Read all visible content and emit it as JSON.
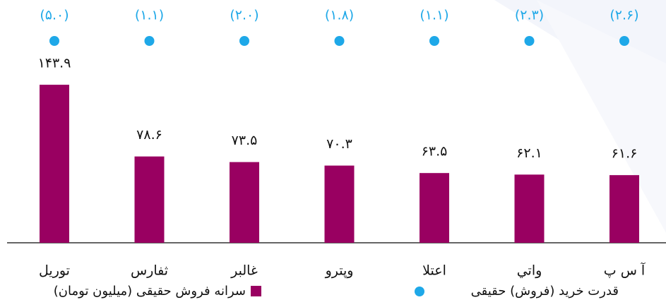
{
  "chart_data": {
    "type": "bar",
    "categories": [
      "توریل",
      "ثفارس",
      "غالبر",
      "وپترو",
      "اعتلا",
      "واتي",
      "آ س پ"
    ],
    "series": [
      {
        "name": "سرانه فروش حقیقی (میلیون تومان)",
        "color": "#990061",
        "values": [
          143.9,
          78.6,
          73.5,
          70.3,
          63.5,
          62.1,
          61.6
        ],
        "value_labels": [
          "۱۴۳.۹",
          "۷۸.۶",
          "۷۳.۵",
          "۷۰.۳",
          "۶۳.۵",
          "۶۲.۱",
          "۶۱.۶"
        ]
      },
      {
        "name": "قدرت خرید (فروش) حقیقی",
        "color": "#1ea8e8",
        "values": [
          5.0,
          1.1,
          2.0,
          1.8,
          1.1,
          2.3,
          2.6
        ],
        "value_labels": [
          "(۵.۰)",
          "(۱.۱)",
          "(۲.۰)",
          "(۱.۸)",
          "(۱.۱)",
          "(۲.۳)",
          "(۲.۶)"
        ]
      }
    ]
  }
}
